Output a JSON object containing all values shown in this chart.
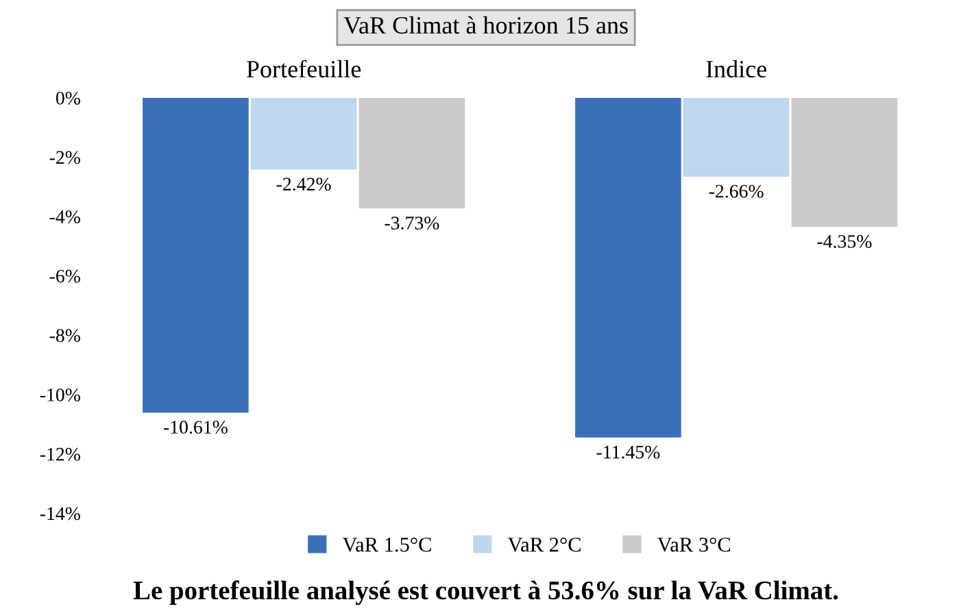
{
  "chart_data": {
    "type": "bar",
    "title": "VaR Climat à horizon 15 ans",
    "categories": [
      "Portefeuille",
      "Indice"
    ],
    "series": [
      {
        "name": "VaR 1.5°C",
        "color": "#3b6fba",
        "values": [
          -10.61,
          -11.45
        ],
        "value_labels": [
          "-10.61%",
          "-11.45%"
        ]
      },
      {
        "name": "VaR 2°C",
        "color": "#bdd7ee",
        "values": [
          -2.42,
          -2.66
        ],
        "value_labels": [
          "-2.42%",
          "-2.66%"
        ]
      },
      {
        "name": "VaR 3°C",
        "color": "#cbcbcb",
        "values": [
          -3.73,
          -4.35
        ],
        "value_labels": [
          "-3.73%",
          "-4.35%"
        ]
      }
    ],
    "ylim": [
      -14,
      0
    ],
    "yticks": [
      {
        "value": 0,
        "label": "0%"
      },
      {
        "value": -2,
        "label": "-2%"
      },
      {
        "value": -4,
        "label": "-4%"
      },
      {
        "value": -6,
        "label": "-6%"
      },
      {
        "value": -8,
        "label": "-8%"
      },
      {
        "value": -10,
        "label": "-10%"
      },
      {
        "value": -12,
        "label": "-12%"
      },
      {
        "value": -14,
        "label": "-14%"
      }
    ],
    "legend": "bottom",
    "grid": false,
    "annotations": [
      "Le portefeuille analysé est couvert à 53.6% sur la VaR Climat."
    ]
  }
}
